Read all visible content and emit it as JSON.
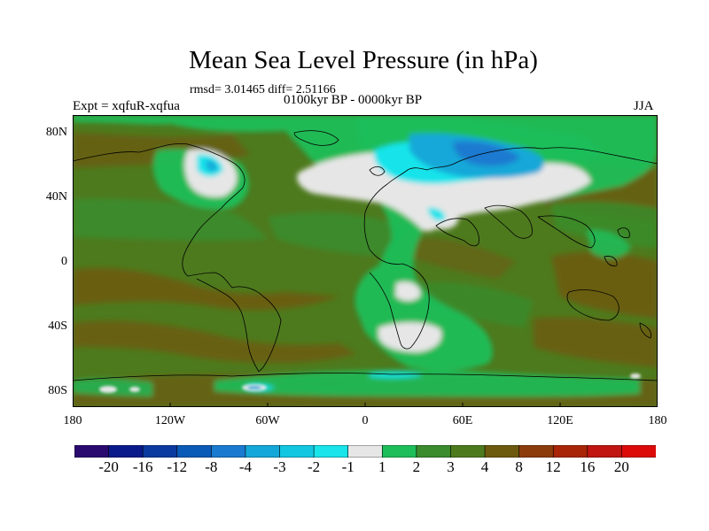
{
  "map": {
    "title": "Mean Sea Level Pressure (in hPa)",
    "stats": "rmsd= 3.01465 diff= 2.51166",
    "period": "0100kyr BP - 0000kyr BP",
    "experiment": "Expt = xqfuR-xqfua",
    "season": "JJA",
    "lat_labels": [
      "80N",
      "40N",
      "0",
      "40S",
      "80S"
    ],
    "lon_labels": [
      "180",
      "120W",
      "60W",
      "0",
      "60E",
      "120E",
      "180"
    ]
  },
  "colorbar": {
    "colors": [
      "#2a0a6e",
      "#0a1a8a",
      "#0a3aa0",
      "#0a5ab8",
      "#1a7ad0",
      "#14a8d8",
      "#12c6e2",
      "#18e4ea",
      "#e6e6e6",
      "#1ebe5a",
      "#3a8c2c",
      "#4e7a1e",
      "#6e5a0e",
      "#8c3c0a",
      "#a82508",
      "#c01510",
      "#dd0a0a"
    ],
    "labels": [
      "-20",
      "-16",
      "-12",
      "-8",
      "-4",
      "-3",
      "-2",
      "-1",
      "1",
      "2",
      "3",
      "4",
      "8",
      "12",
      "16",
      "20"
    ]
  },
  "legend_colors": {
    "ocean_base": "#4e7a1e",
    "light_green": "#3a8c2c",
    "bright_green": "#1ebe5a",
    "white": "#e6e6e6",
    "cyan": "#18e4ea",
    "blue": "#14a8d8",
    "brown": "#6e5a0e"
  }
}
